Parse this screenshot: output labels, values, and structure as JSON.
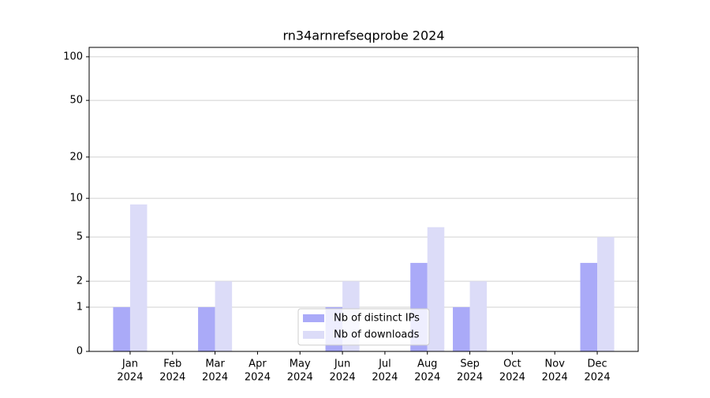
{
  "chart_data": {
    "type": "bar",
    "title": "rn34arnrefseqprobe 2024",
    "categories": [
      [
        "Jan",
        "2024"
      ],
      [
        "Feb",
        "2024"
      ],
      [
        "Mar",
        "2024"
      ],
      [
        "Apr",
        "2024"
      ],
      [
        "May",
        "2024"
      ],
      [
        "Jun",
        "2024"
      ],
      [
        "Jul",
        "2024"
      ],
      [
        "Aug",
        "2024"
      ],
      [
        "Sep",
        "2024"
      ],
      [
        "Oct",
        "2024"
      ],
      [
        "Nov",
        "2024"
      ],
      [
        "Dec",
        "2024"
      ]
    ],
    "series": [
      {
        "name": "Nb of distinct IPs",
        "color": "#aaaaf8",
        "values": [
          1,
          0,
          1,
          0,
          0,
          1,
          0,
          3,
          1,
          0,
          0,
          3
        ]
      },
      {
        "name": "Nb of downloads",
        "color": "#dcdcf8",
        "values": [
          9,
          0,
          2,
          0,
          0,
          2,
          0,
          6,
          2,
          0,
          0,
          5
        ]
      }
    ],
    "yscale": "log1p",
    "ylim": [
      0,
      116
    ],
    "yticks": [
      0,
      1,
      2,
      5,
      10,
      20,
      50,
      100
    ],
    "grid": true,
    "legend": "lower center"
  }
}
